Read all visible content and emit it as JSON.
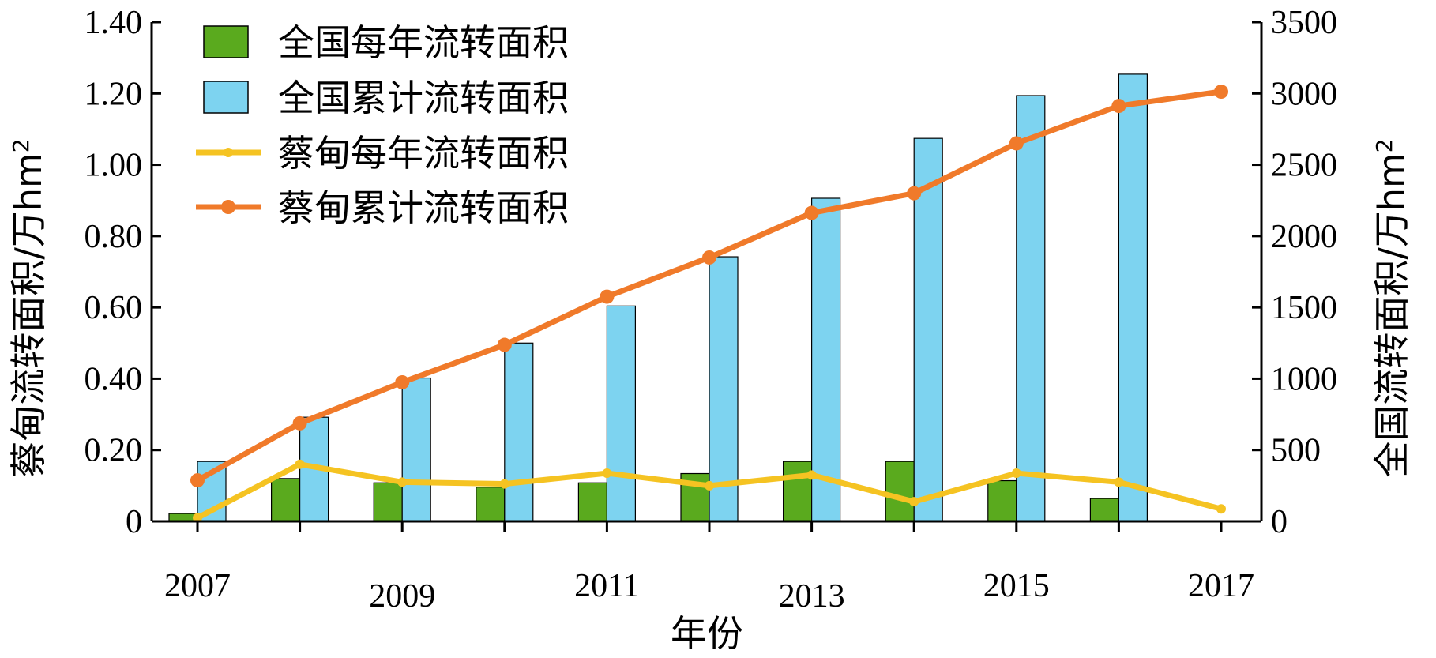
{
  "chart_data": {
    "type": "bar",
    "x": [
      2007,
      2008,
      2009,
      2010,
      2011,
      2012,
      2013,
      2014,
      2015,
      2016,
      2017
    ],
    "xticks": [
      "2007",
      "2009",
      "2011",
      "2013",
      "2015",
      "2017"
    ],
    "xlabel": "年份",
    "ylabel_left": "蔡甸流转面积/万hm",
    "ylabel_left_sup": "2",
    "ylabel_right": "全国流转面积/万hm",
    "ylabel_right_sup": "2",
    "ylim_left": [
      0,
      1.4
    ],
    "ylim_right": [
      0,
      3500
    ],
    "yticks_left": [
      "0",
      "0.20",
      "0.40",
      "0.60",
      "0.80",
      "1.00",
      "1.20",
      "1.40"
    ],
    "yticks_right": [
      "0",
      "500",
      "1000",
      "1500",
      "2000",
      "2500",
      "3000",
      "3500"
    ],
    "grid": false,
    "legend_position": "top-left",
    "series": [
      {
        "name": "全国每年流转面积",
        "kind": "bar",
        "axis": "right",
        "color": "#5aaa1e",
        "values": [
          55,
          300,
          270,
          240,
          270,
          335,
          420,
          420,
          285,
          160,
          null
        ]
      },
      {
        "name": "全国累计流转面积",
        "kind": "bar",
        "axis": "right",
        "color": "#7dd3f0",
        "values": [
          420,
          730,
          1005,
          1250,
          1510,
          1855,
          2265,
          2685,
          2985,
          3135,
          null
        ]
      },
      {
        "name": "蔡甸每年流转面积",
        "kind": "line",
        "axis": "left",
        "color": "#f5c322",
        "values": [
          0.01,
          0.16,
          0.11,
          0.105,
          0.135,
          0.1,
          0.13,
          0.055,
          0.135,
          0.11,
          0.035
        ]
      },
      {
        "name": "蔡甸累计流转面积",
        "kind": "line",
        "axis": "left",
        "color": "#f07a2a",
        "values": [
          0.115,
          0.275,
          0.39,
          0.495,
          0.63,
          0.74,
          0.865,
          0.92,
          1.06,
          1.165,
          1.205
        ]
      }
    ]
  }
}
